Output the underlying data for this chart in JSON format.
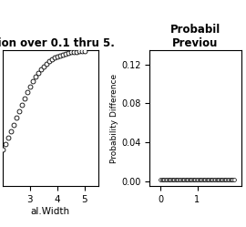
{
  "title_left": "ction over 0.1 thru 5.",
  "title_right_line1": "Probabil",
  "title_right_line2": "Previou",
  "xlabel_left": "al.Width",
  "ylabel_right": "Probability Difference",
  "xlim_left": [
    2.0,
    5.5
  ],
  "ylim_left": [
    0.0,
    1.0
  ],
  "xlim_right": [
    -0.3,
    2.2
  ],
  "ylim_right": [
    -0.005,
    0.135
  ],
  "yticks_right": [
    0.0,
    0.04,
    0.08,
    0.12
  ],
  "xticks_left": [
    3,
    4,
    5
  ],
  "xticks_right": [
    0,
    1
  ],
  "bg_color": "#ffffff",
  "point_color": "white",
  "point_edgecolor": "black",
  "point_size": 5
}
